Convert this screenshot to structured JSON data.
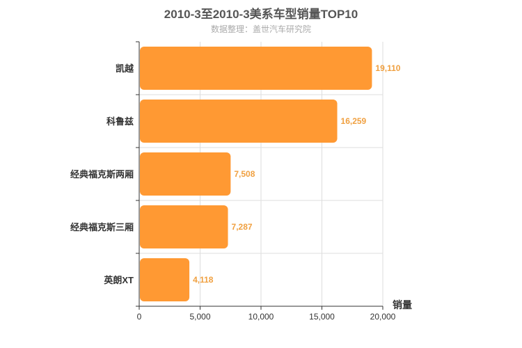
{
  "chart_data": {
    "type": "bar",
    "orientation": "horizontal",
    "title": "2010-3至2010-3美系车型销量TOP10",
    "subtitle": "数据整理：盖世汽车研究院",
    "xlabel": "销量",
    "ylabel": "",
    "categories": [
      "凯越",
      "科鲁兹",
      "经典福克斯两厢",
      "经典福克斯三厢",
      "英朗XT"
    ],
    "values": [
      19110,
      16259,
      7508,
      7287,
      4118
    ],
    "value_labels": [
      "19,110",
      "16,259",
      "7,508",
      "7,287",
      "4,118"
    ],
    "xlim": [
      0,
      20000
    ],
    "x_ticks": [
      0,
      5000,
      10000,
      15000,
      20000
    ],
    "x_tick_labels": [
      "0",
      "5,000",
      "10,000",
      "15,000",
      "20,000"
    ],
    "grid": true,
    "bar_color": "#ff9933",
    "label_color": "#f0a040"
  }
}
